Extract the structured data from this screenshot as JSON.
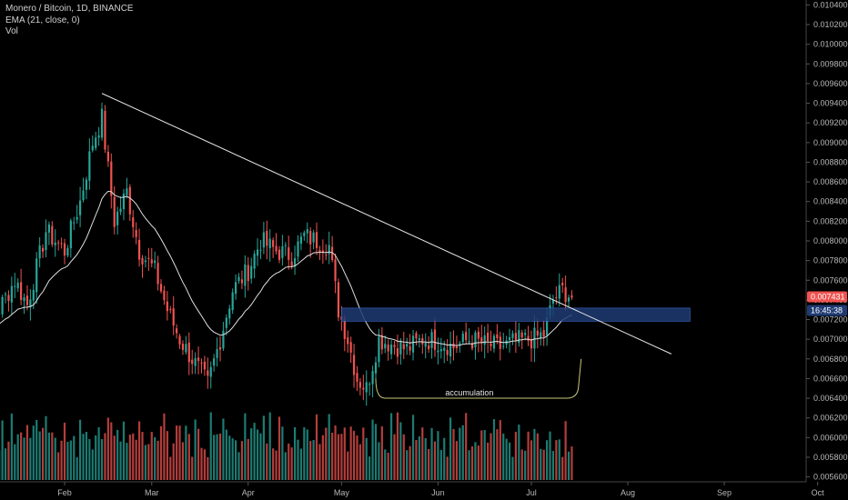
{
  "header": {
    "symbol_line": "Monero / Bitcoin, 1D, BINANCE",
    "indicator_line": "EMA (21, close, 0)",
    "volume_line": "Vol"
  },
  "colors": {
    "background": "#000000",
    "up": "#26a69a",
    "down": "#ef5350",
    "ema": "#e0e0e0",
    "trendline": "#e8e8e8",
    "zone": "#1f3b73",
    "accumulation": "#c8c878",
    "price_label_bg": "#ef5350",
    "timer_label_bg": "#1f3b73"
  },
  "chart_data": {
    "type": "candlestick",
    "ylim": [
      0.00555,
      0.01045
    ],
    "y_ticks": [
      "0.010400",
      "0.010200",
      "0.010000",
      "0.009800",
      "0.009600",
      "0.009400",
      "0.009200",
      "0.009000",
      "0.008800",
      "0.008600",
      "0.008400",
      "0.008200",
      "0.008000",
      "0.007800",
      "0.007600",
      "0.007400",
      "0.007200",
      "0.007000",
      "0.006800",
      "0.006600",
      "0.006400",
      "0.006200",
      "0.006000",
      "0.005800",
      "0.005600"
    ],
    "x_ticks": [
      "Feb",
      "Mar",
      "Apr",
      "May",
      "Jun",
      "Jul",
      "Aug",
      "Sep",
      "Oct"
    ],
    "current_price": "0.007431",
    "countdown": "16:45:38",
    "anchors": [
      [
        "Jan 01",
        0.007
      ],
      [
        "Jan 05",
        0.00735
      ],
      [
        "Jan 10",
        0.00725
      ],
      [
        "Jan 16",
        0.0076
      ],
      [
        "Jan 20",
        0.00735
      ],
      [
        "Jan 26",
        0.0081
      ],
      [
        "Feb 01",
        0.0079
      ],
      [
        "Feb 06",
        0.0084
      ],
      [
        "Feb 10",
        0.009
      ],
      [
        "Feb 13",
        0.00925
      ],
      [
        "Feb 17",
        0.0082
      ],
      [
        "Feb 21",
        0.0085
      ],
      [
        "Feb 25",
        0.0079
      ],
      [
        "Mar 02",
        0.0077
      ],
      [
        "Mar 06",
        0.0073
      ],
      [
        "Mar 10",
        0.007
      ],
      [
        "Mar 14",
        0.0068
      ],
      [
        "Mar 19",
        0.00655
      ],
      [
        "Mar 23",
        0.007
      ],
      [
        "Mar 27",
        0.0075
      ],
      [
        "Apr 01",
        0.0077
      ],
      [
        "Apr 05",
        0.008
      ],
      [
        "Apr 10",
        0.0079
      ],
      [
        "Apr 15",
        0.00785
      ],
      [
        "Apr 19",
        0.00805
      ],
      [
        "Apr 23",
        0.008
      ],
      [
        "Apr 27",
        0.00795
      ],
      [
        "Apr 30",
        0.0073
      ],
      [
        "May 03",
        0.007
      ],
      [
        "May 06",
        0.0066
      ],
      [
        "May 09",
        0.0065
      ],
      [
        "May 13",
        0.007
      ],
      [
        "May 17",
        0.00695
      ],
      [
        "May 22",
        0.0069
      ],
      [
        "May 27",
        0.007
      ],
      [
        "Jun 01",
        0.00698
      ],
      [
        "Jun 06",
        0.00692
      ],
      [
        "Jun 11",
        0.007
      ],
      [
        "Jun 16",
        0.00695
      ],
      [
        "Jun 21",
        0.00692
      ],
      [
        "Jun 26",
        0.00698
      ],
      [
        "Jul 01",
        0.007
      ],
      [
        "Jul 05",
        0.00705
      ],
      [
        "Jul 08",
        0.0074
      ],
      [
        "Jul 11",
        0.0075
      ],
      [
        "Jul 14",
        0.00743
      ]
    ],
    "volume": {
      "levels": [
        "low",
        "high",
        "medium"
      ],
      "note": "bars shown below price"
    },
    "trendline": {
      "from": [
        "Feb 13",
        0.0095
      ],
      "to": [
        "Aug 15",
        0.00685
      ]
    },
    "zone": {
      "from": "May 01",
      "to": "Aug 21",
      "low": 0.00722,
      "high": 0.00728
    },
    "annotations": [
      {
        "text": "accumulation"
      }
    ]
  }
}
